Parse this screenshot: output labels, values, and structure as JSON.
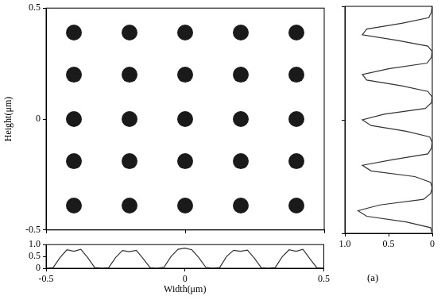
{
  "chart_data": [
    {
      "type": "scatter",
      "ylabel": "Height(μm)",
      "x": [
        -0.4,
        -0.2,
        0,
        0.2,
        0.4,
        -0.4,
        -0.2,
        0,
        0.2,
        0.4,
        -0.4,
        -0.2,
        0,
        0.2,
        0.4,
        -0.4,
        -0.2,
        0,
        0.2,
        0.4,
        -0.4,
        -0.2,
        0,
        0.2,
        0.4
      ],
      "y": [
        0.39,
        0.39,
        0.39,
        0.39,
        0.39,
        0.2,
        0.2,
        0.2,
        0.2,
        0.2,
        0,
        0,
        0,
        0,
        0,
        -0.19,
        -0.19,
        -0.19,
        -0.19,
        -0.19,
        -0.39,
        -0.39,
        -0.39,
        -0.39,
        -0.39
      ],
      "xlim": [
        -0.5,
        0.5
      ],
      "xticks": [
        -0.5,
        0,
        0.5
      ],
      "ylim": [
        -0.5,
        0.5
      ],
      "yticks": [
        -0.5,
        0,
        0.5
      ],
      "tick_labels": "y",
      "grid": false,
      "marker": "circle",
      "color": "#1a1a1a"
    },
    {
      "type": "line",
      "xlabel": "Width(μm)",
      "x": [
        -0.5,
        -0.475,
        -0.45,
        -0.425,
        -0.4,
        -0.375,
        -0.35,
        -0.325,
        -0.3,
        -0.275,
        -0.25,
        -0.225,
        -0.2,
        -0.175,
        -0.15,
        -0.125,
        -0.1,
        -0.075,
        -0.05,
        -0.025,
        0,
        0.025,
        0.05,
        0.075,
        0.1,
        0.125,
        0.15,
        0.175,
        0.2,
        0.225,
        0.25,
        0.275,
        0.3,
        0.325,
        0.35,
        0.375,
        0.4,
        0.425,
        0.45,
        0.475,
        0.5
      ],
      "values": [
        0,
        0.02,
        0.45,
        0.78,
        0.72,
        0.8,
        0.45,
        0.03,
        0,
        0.02,
        0.45,
        0.75,
        0.7,
        0.76,
        0.4,
        0.02,
        0,
        0.05,
        0.5,
        0.8,
        0.85,
        0.78,
        0.45,
        0.04,
        0,
        0.03,
        0.5,
        0.76,
        0.72,
        0.77,
        0.42,
        0.02,
        0,
        0.03,
        0.48,
        0.78,
        0.72,
        0.8,
        0.4,
        0.02,
        0
      ],
      "xlim": [
        -0.5,
        0.5
      ],
      "xticks": [
        -0.5,
        0,
        0.5
      ],
      "ylim": [
        0,
        1
      ],
      "yticks": [
        0,
        0.5,
        {
          "value": 1,
          "label": "1.0"
        }
      ],
      "grid": false,
      "color": "#333333"
    },
    {
      "type": "line",
      "annotation": "(a)",
      "x": [
        0,
        0.02,
        0.3,
        0.75,
        0.85,
        0.6,
        0.1,
        0.02,
        0,
        0.02,
        0.2,
        0.7,
        0.8,
        0.45,
        0.05,
        0.01,
        0,
        0.03,
        0.3,
        0.7,
        0.8,
        0.55,
        0.08,
        0.01,
        0,
        0.05,
        0.35,
        0.75,
        0.8,
        0.5,
        0.06,
        0.01,
        0,
        0.05,
        0.4,
        0.8,
        0.75,
        0.35,
        0.04,
        0.01,
        0
      ],
      "y": [
        -0.5,
        -0.475,
        -0.45,
        -0.425,
        -0.4,
        -0.375,
        -0.35,
        -0.325,
        -0.3,
        -0.275,
        -0.25,
        -0.225,
        -0.2,
        -0.175,
        -0.15,
        -0.125,
        -0.1,
        -0.075,
        -0.05,
        -0.025,
        0,
        0.025,
        0.05,
        0.075,
        0.1,
        0.125,
        0.15,
        0.175,
        0.2,
        0.225,
        0.25,
        0.275,
        0.3,
        0.325,
        0.35,
        0.375,
        0.4,
        0.425,
        0.45,
        0.475,
        0.5
      ],
      "xlim": [
        1,
        0
      ],
      "xticks": [
        {
          "value": 1,
          "label": "1.0"
        },
        0.5,
        0
      ],
      "ylim": [
        -0.5,
        0.5
      ],
      "yticks": [
        -0.5,
        0,
        0.5
      ],
      "tick_labels": "x",
      "grid": false,
      "color": "#333333"
    }
  ]
}
